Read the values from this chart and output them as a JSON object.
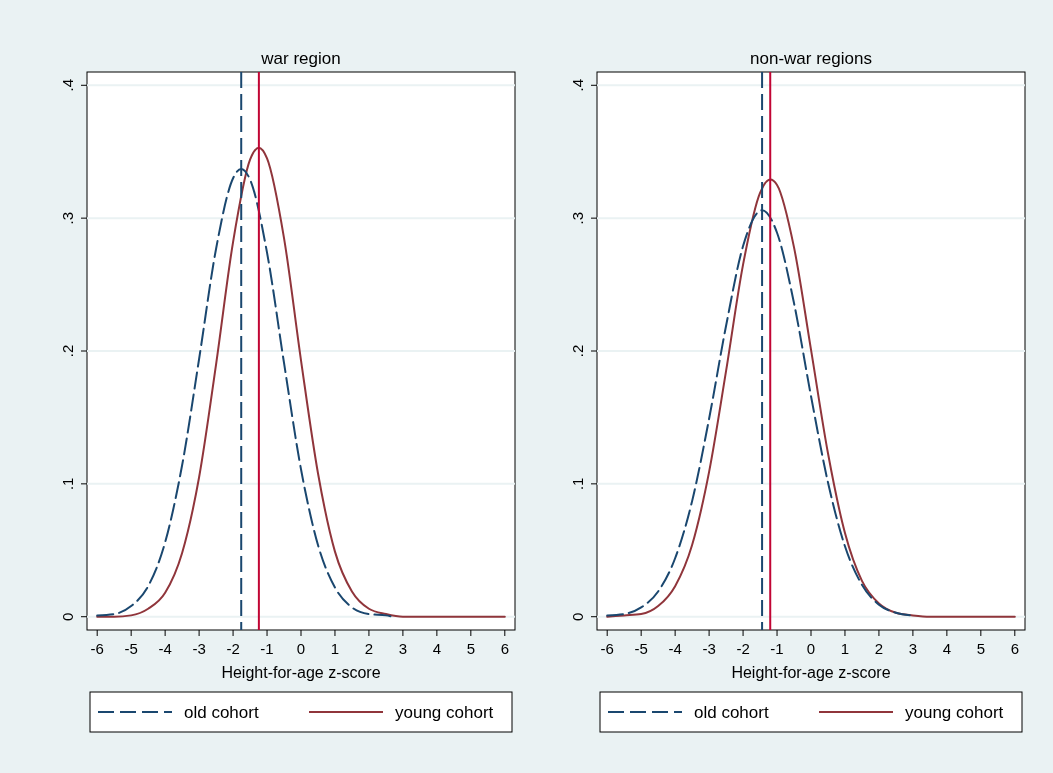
{
  "chart_data": [
    {
      "type": "line",
      "title": "war region",
      "xlabel": "Height-for-age z-score",
      "xlim": [
        -6.3,
        6.3
      ],
      "xticks": [
        -6,
        -5,
        -4,
        -3,
        -2,
        -1,
        0,
        1,
        2,
        3,
        4,
        5,
        6
      ],
      "ylim": [
        -0.01,
        0.41
      ],
      "yticks": [
        {
          "value": 0,
          "label": "0"
        },
        {
          "value": 0.1,
          "label": ".1"
        },
        {
          "value": 0.2,
          "label": ".2"
        },
        {
          "value": 0.3,
          "label": ".3"
        },
        {
          "value": 0.4,
          "label": ".4"
        }
      ],
      "grid": "y",
      "legend": "bottom",
      "series": [
        {
          "name": "old cohort",
          "color": "#1a476f",
          "line_style": "dashed",
          "x": [
            -6,
            -5.5,
            -5,
            -4.5,
            -4,
            -3.5,
            -3,
            -2.5,
            -2,
            -1.76,
            -1.5,
            -1,
            -0.5,
            0,
            0.5,
            1,
            1.5,
            2,
            2.5,
            2.7
          ],
          "values": [
            0.001,
            0.002,
            0.008,
            0.023,
            0.056,
            0.114,
            0.194,
            0.277,
            0.33,
            0.337,
            0.329,
            0.274,
            0.191,
            0.111,
            0.054,
            0.022,
            0.007,
            0.002,
            0.001,
            0
          ]
        },
        {
          "name": "young cohort",
          "color": "#90353b",
          "line_style": "solid",
          "x": [
            -6,
            -5.5,
            -5,
            -4.5,
            -4,
            -3.5,
            -3,
            -2.5,
            -2,
            -1.5,
            -1.24,
            -1,
            -0.5,
            0,
            0.5,
            1,
            1.5,
            2,
            2.5,
            3,
            3.5,
            4,
            5,
            6
          ],
          "values": [
            0,
            0,
            0.001,
            0.006,
            0.018,
            0.048,
            0.105,
            0.19,
            0.282,
            0.344,
            0.353,
            0.345,
            0.285,
            0.193,
            0.108,
            0.049,
            0.019,
            0.006,
            0.002,
            0,
            0,
            0,
            0,
            0
          ]
        }
      ],
      "ref_lines": [
        {
          "axis": "x",
          "value": -1.76,
          "color": "#1a476f",
          "line_style": "dashed"
        },
        {
          "axis": "x",
          "value": -1.24,
          "color": "#c10534",
          "line_style": "solid"
        }
      ]
    },
    {
      "type": "line",
      "title": "non-war regions",
      "xlabel": "Height-for-age z-score",
      "xlim": [
        -6.3,
        6.3
      ],
      "xticks": [
        -6,
        -5,
        -4,
        -3,
        -2,
        -1,
        0,
        1,
        2,
        3,
        4,
        5,
        6
      ],
      "ylim": [
        -0.01,
        0.41
      ],
      "yticks": [
        {
          "value": 0,
          "label": "0"
        },
        {
          "value": 0.1,
          "label": ".1"
        },
        {
          "value": 0.2,
          "label": ".2"
        },
        {
          "value": 0.3,
          "label": ".3"
        },
        {
          "value": 0.4,
          "label": ".4"
        }
      ],
      "grid": "y",
      "legend": "bottom",
      "series": [
        {
          "name": "old cohort",
          "color": "#1a476f",
          "line_style": "dashed",
          "x": [
            -6,
            -5.5,
            -5,
            -4.5,
            -4,
            -3.5,
            -3,
            -2.5,
            -2,
            -1.44,
            -1,
            -0.5,
            0,
            0.5,
            1,
            1.5,
            2,
            2.5,
            3
          ],
          "values": [
            0.001,
            0.002,
            0.007,
            0.019,
            0.044,
            0.087,
            0.149,
            0.219,
            0.279,
            0.306,
            0.289,
            0.236,
            0.166,
            0.101,
            0.053,
            0.024,
            0.009,
            0.003,
            0.001
          ]
        },
        {
          "name": "young cohort",
          "color": "#90353b",
          "line_style": "solid",
          "x": [
            -6,
            -5.5,
            -5,
            -4.5,
            -4,
            -3.5,
            -3,
            -2.5,
            -2,
            -1.5,
            -1.2,
            -1,
            -0.5,
            0,
            0.5,
            1,
            1.5,
            2,
            2.5,
            3,
            3.5,
            4,
            5,
            6
          ],
          "values": [
            0,
            0.001,
            0.002,
            0.008,
            0.023,
            0.054,
            0.109,
            0.185,
            0.265,
            0.319,
            0.329,
            0.325,
            0.278,
            0.201,
            0.123,
            0.063,
            0.027,
            0.01,
            0.003,
            0.001,
            0,
            0,
            0,
            0
          ]
        }
      ],
      "ref_lines": [
        {
          "axis": "x",
          "value": -1.44,
          "color": "#1a476f",
          "line_style": "dashed"
        },
        {
          "axis": "x",
          "value": -1.2,
          "color": "#c10534",
          "line_style": "solid"
        }
      ]
    }
  ]
}
